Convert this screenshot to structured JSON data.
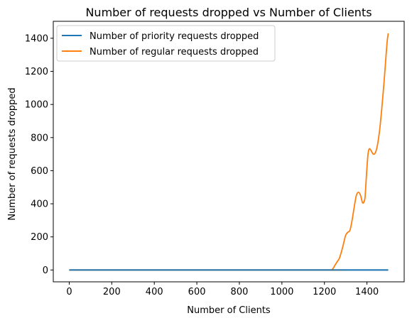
{
  "chart_data": {
    "type": "line",
    "title": "Number of requests dropped vs Number of Clients",
    "xlabel": "Number of Clients",
    "ylabel": "Number of requests dropped",
    "xlim": [
      -75,
      1575
    ],
    "ylim": [
      -71.5,
      1502.5
    ],
    "xticks": [
      0,
      200,
      400,
      600,
      800,
      1000,
      1200,
      1400
    ],
    "yticks": [
      0,
      200,
      400,
      600,
      800,
      1000,
      1200,
      1400
    ],
    "legend": {
      "position": "top-left"
    },
    "series": [
      {
        "name": "Number of priority requests dropped",
        "color": "#1f77b4",
        "x": [
          0,
          1500
        ],
        "y": [
          0,
          0
        ]
      },
      {
        "name": "Number of regular requests dropped",
        "color": "#ff7f0e",
        "x": [
          0,
          1200,
          1230,
          1240,
          1250,
          1260,
          1270,
          1280,
          1290,
          1300,
          1310,
          1320,
          1330,
          1340,
          1350,
          1360,
          1370,
          1380,
          1390,
          1395,
          1400,
          1405,
          1410,
          1415,
          1420,
          1430,
          1440,
          1450,
          1460,
          1470,
          1480,
          1490,
          1495,
          1500
        ],
        "y": [
          0,
          0,
          0,
          8,
          30,
          50,
          70,
          110,
          160,
          210,
          228,
          240,
          300,
          380,
          450,
          470,
          450,
          405,
          430,
          520,
          620,
          700,
          730,
          730,
          720,
          700,
          710,
          760,
          850,
          980,
          1130,
          1300,
          1380,
          1430
        ]
      }
    ]
  }
}
